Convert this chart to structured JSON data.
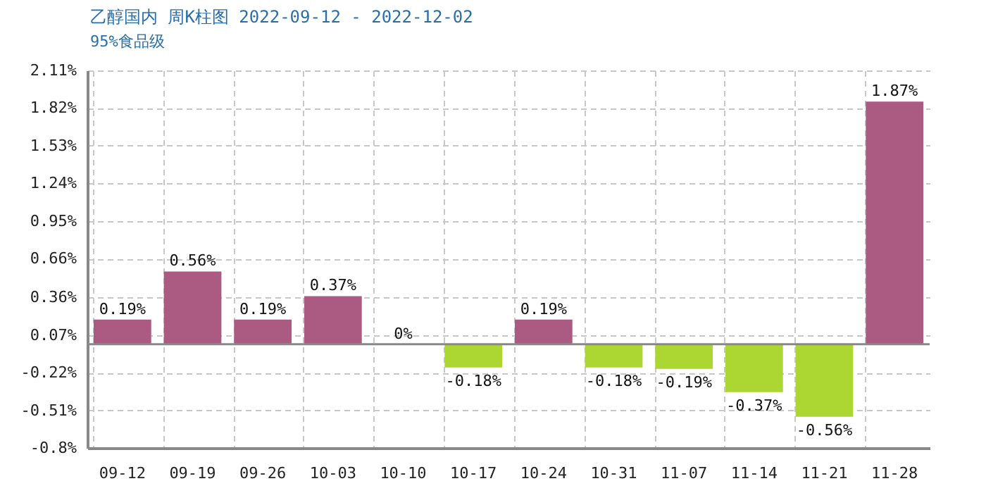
{
  "chart_data": {
    "type": "bar",
    "title": "乙醇国内 周K柱图 2022-09-12 - 2022-12-02",
    "subtitle": "95%食品级",
    "categories": [
      "09-12",
      "09-19",
      "09-26",
      "10-03",
      "10-10",
      "10-17",
      "10-24",
      "10-31",
      "11-07",
      "11-14",
      "11-21",
      "11-28"
    ],
    "values": [
      0.19,
      0.56,
      0.19,
      0.37,
      0,
      -0.18,
      0.19,
      -0.18,
      -0.19,
      -0.37,
      -0.56,
      1.87
    ],
    "colors": [
      "#ab5a82",
      "#ab5a82",
      "#ab5a82",
      "#ab5a82",
      "#ab5a82",
      "#acd631",
      "#ab5a82",
      "#acd631",
      "#acd631",
      "#acd631",
      "#acd631",
      "#ab5a82"
    ],
    "value_labels": [
      "0.19%",
      "0.56%",
      "0.19%",
      "0.37%",
      "0%",
      "-0.18%",
      "0.19%",
      "-0.18%",
      "-0.19%",
      "-0.37%",
      "-0.56%",
      "1.87%"
    ],
    "ylim": [
      -0.8,
      2.11
    ],
    "yticks": [
      {
        "value": -0.8,
        "label": "-0.8%"
      },
      {
        "value": -0.51,
        "label": "-0.51%"
      },
      {
        "value": -0.22,
        "label": "-0.22%"
      },
      {
        "value": 0.07,
        "label": "0.07%"
      },
      {
        "value": 0.36,
        "label": "0.36%"
      },
      {
        "value": 0.66,
        "label": "0.66%"
      },
      {
        "value": 0.95,
        "label": "0.95%"
      },
      {
        "value": 1.24,
        "label": "1.24%"
      },
      {
        "value": 1.53,
        "label": "1.53%"
      },
      {
        "value": 1.82,
        "label": "1.82%"
      },
      {
        "value": 2.11,
        "label": "2.11%"
      }
    ],
    "ref_lines": [
      {
        "axis": "y",
        "value": 0
      }
    ],
    "grid": true
  }
}
